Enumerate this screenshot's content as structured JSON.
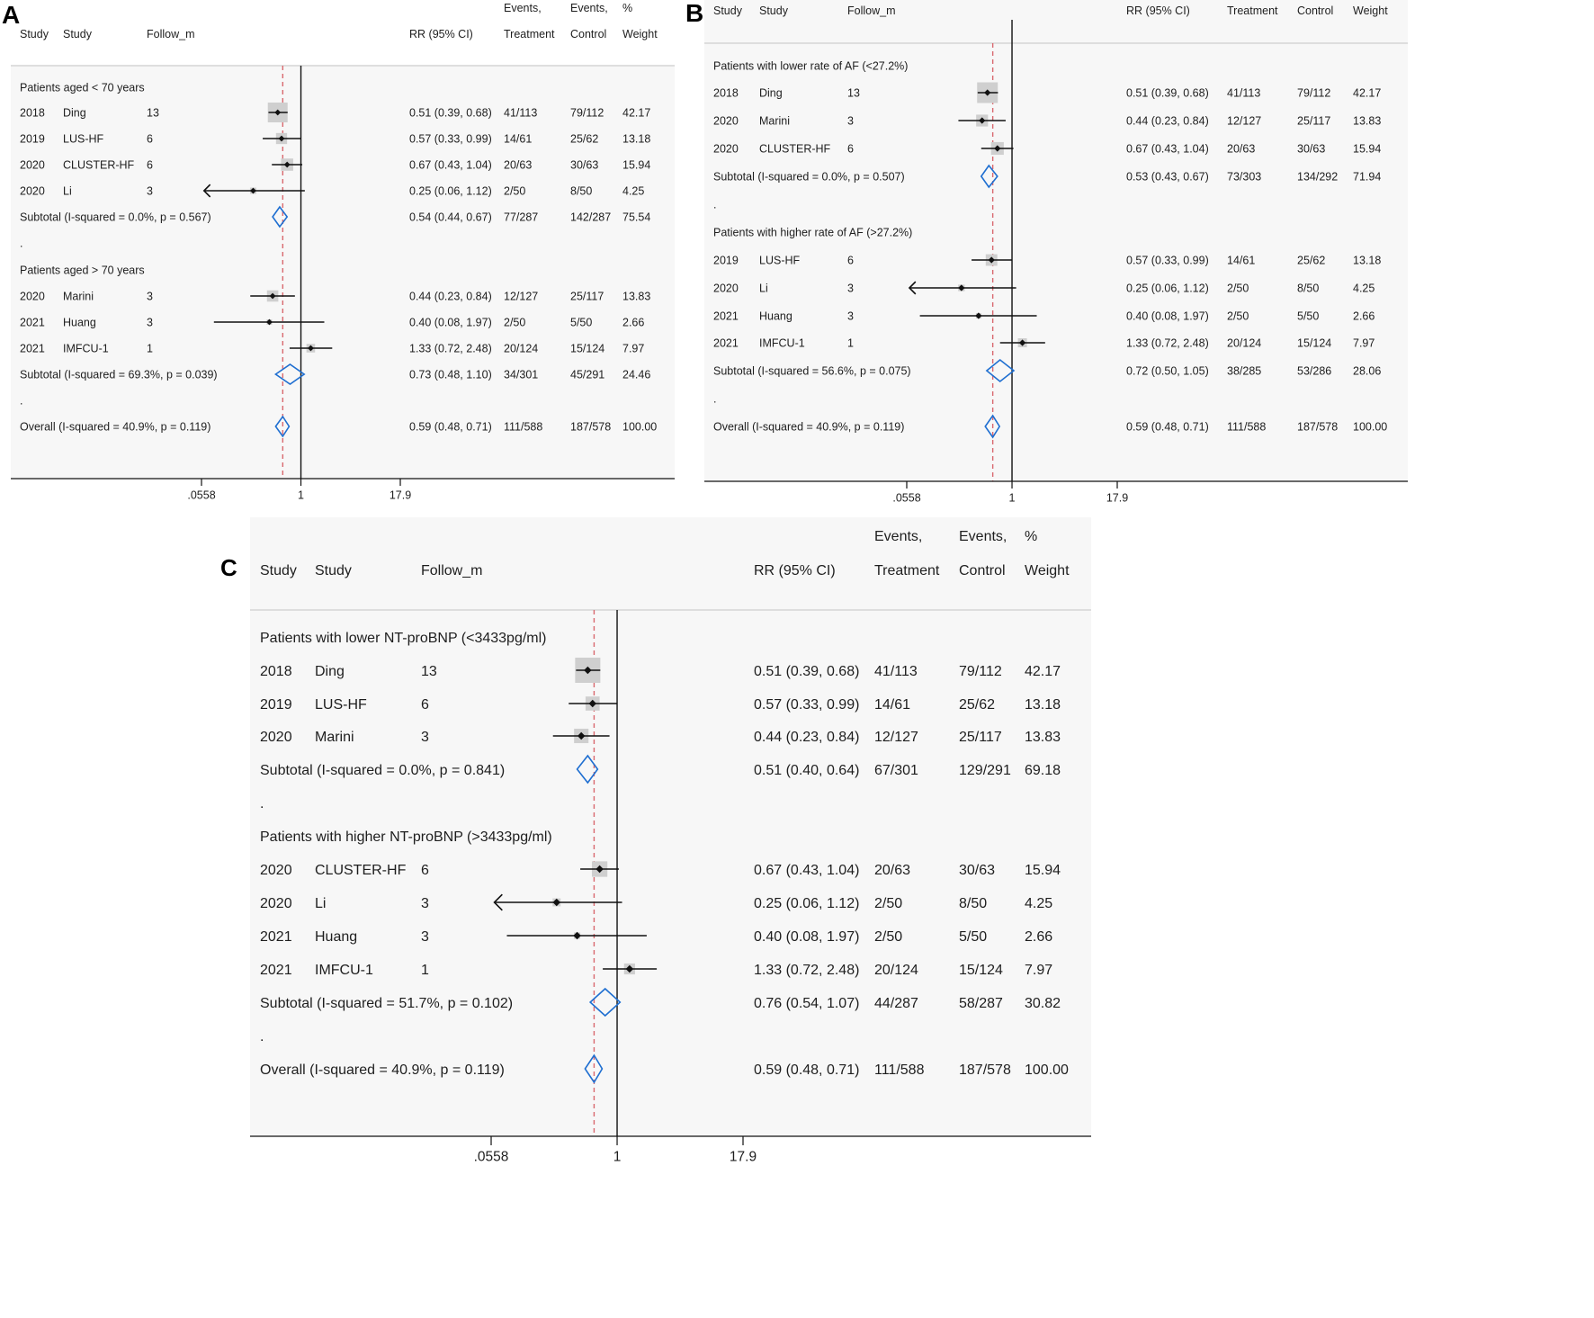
{
  "chart_data": [
    {
      "type": "forest",
      "panel_label": "A",
      "headers": {
        "year": "Study",
        "study": "Study",
        "follow": "Follow_m",
        "rr": "RR (95% CI)",
        "treat_1": "Events,",
        "treat_2": "Treatment",
        "ctrl_1": "Events,",
        "ctrl_2": "Control",
        "wt_1": "%",
        "wt_2": "Weight"
      },
      "x_axis": {
        "scale": "log",
        "ticks": [
          ".0558",
          "1",
          "17.9"
        ],
        "tick_values": [
          0.0558,
          1,
          17.9
        ],
        "xlim": [
          0.0558,
          17.9
        ],
        "reference": 1
      },
      "overall_effect": 0.59,
      "rows": [
        {
          "kind": "group",
          "text": "Patients aged < 70 years"
        },
        {
          "kind": "study",
          "year": "2018",
          "study": "Ding",
          "follow": "13",
          "est": 0.51,
          "lo": 0.39,
          "hi": 0.68,
          "ci_text": "0.51 (0.39, 0.68)",
          "treat": "41/113",
          "ctrl": "79/112",
          "weight": "42.17"
        },
        {
          "kind": "study",
          "year": "2019",
          "study": "LUS-HF",
          "follow": "6",
          "est": 0.57,
          "lo": 0.33,
          "hi": 0.99,
          "ci_text": "0.57 (0.33, 0.99)",
          "treat": "14/61",
          "ctrl": "25/62",
          "weight": "13.18"
        },
        {
          "kind": "study",
          "year": "2020",
          "study": "CLUSTER-HF",
          "follow": "6",
          "est": 0.67,
          "lo": 0.43,
          "hi": 1.04,
          "ci_text": "0.67 (0.43, 1.04)",
          "treat": "20/63",
          "ctrl": "30/63",
          "weight": "15.94"
        },
        {
          "kind": "study",
          "year": "2020",
          "study": "Li",
          "follow": "3",
          "est": 0.25,
          "lo": 0.06,
          "hi": 1.12,
          "ci_text": "0.25 (0.06, 1.12)",
          "treat": "2/50",
          "ctrl": "8/50",
          "weight": "4.25",
          "arrow_left": true
        },
        {
          "kind": "subtotal",
          "text": "Subtotal  (I-squared = 0.0%, p = 0.567)",
          "est": 0.54,
          "lo": 0.44,
          "hi": 0.67,
          "ci_text": "0.54 (0.44, 0.67)",
          "treat": "77/287",
          "ctrl": "142/287",
          "weight": "75.54"
        },
        {
          "kind": "dot",
          "text": "."
        },
        {
          "kind": "group",
          "text": "Patients aged > 70 years"
        },
        {
          "kind": "study",
          "year": "2020",
          "study": "Marini",
          "follow": "3",
          "est": 0.44,
          "lo": 0.23,
          "hi": 0.84,
          "ci_text": "0.44 (0.23, 0.84)",
          "treat": "12/127",
          "ctrl": "25/117",
          "weight": "13.83"
        },
        {
          "kind": "study",
          "year": "2021",
          "study": "Huang",
          "follow": "3",
          "est": 0.4,
          "lo": 0.08,
          "hi": 1.97,
          "ci_text": "0.40 (0.08, 1.97)",
          "treat": "2/50",
          "ctrl": "5/50",
          "weight": "2.66"
        },
        {
          "kind": "study",
          "year": "2021",
          "study": "IMFCU-1",
          "follow": "1",
          "est": 1.33,
          "lo": 0.72,
          "hi": 2.48,
          "ci_text": "1.33 (0.72, 2.48)",
          "treat": "20/124",
          "ctrl": "15/124",
          "weight": "7.97"
        },
        {
          "kind": "subtotal",
          "text": "Subtotal  (I-squared = 69.3%, p = 0.039)",
          "est": 0.73,
          "lo": 0.48,
          "hi": 1.1,
          "ci_text": "0.73 (0.48, 1.10)",
          "treat": "34/301",
          "ctrl": "45/291",
          "weight": "24.46"
        },
        {
          "kind": "dot",
          "text": "."
        },
        {
          "kind": "overall",
          "text": "Overall  (I-squared = 40.9%, p = 0.119)",
          "est": 0.59,
          "lo": 0.48,
          "hi": 0.71,
          "ci_text": "0.59 (0.48, 0.71)",
          "treat": "111/588",
          "ctrl": "187/578",
          "weight": "100.00"
        }
      ]
    },
    {
      "type": "forest",
      "panel_label": "B",
      "headers": {
        "year": "Study",
        "study": "Study",
        "follow": "Follow_m",
        "rr": "RR (95% CI)",
        "treat_1": "",
        "treat_2": "Treatment",
        "ctrl_1": "",
        "ctrl_2": "Control",
        "wt_1": "",
        "wt_2": "Weight"
      },
      "x_axis": {
        "scale": "log",
        "ticks": [
          ".0558",
          "1",
          "17.9"
        ],
        "tick_values": [
          0.0558,
          1,
          17.9
        ],
        "xlim": [
          0.0558,
          17.9
        ],
        "reference": 1
      },
      "overall_effect": 0.59,
      "rows": [
        {
          "kind": "group",
          "text": "Patients with lower rate of AF (<27.2%)"
        },
        {
          "kind": "study",
          "year": "2018",
          "study": "Ding",
          "follow": "13",
          "est": 0.51,
          "lo": 0.39,
          "hi": 0.68,
          "ci_text": "0.51 (0.39, 0.68)",
          "treat": "41/113",
          "ctrl": "79/112",
          "weight": "42.17"
        },
        {
          "kind": "study",
          "year": "2020",
          "study": "Marini",
          "follow": "3",
          "est": 0.44,
          "lo": 0.23,
          "hi": 0.84,
          "ci_text": "0.44 (0.23, 0.84)",
          "treat": "12/127",
          "ctrl": "25/117",
          "weight": "13.83"
        },
        {
          "kind": "study",
          "year": "2020",
          "study": "CLUSTER-HF",
          "follow": "6",
          "est": 0.67,
          "lo": 0.43,
          "hi": 1.04,
          "ci_text": "0.67 (0.43, 1.04)",
          "treat": "20/63",
          "ctrl": "30/63",
          "weight": "15.94"
        },
        {
          "kind": "subtotal",
          "text": "Subtotal  (I-squared = 0.0%, p = 0.507)",
          "est": 0.53,
          "lo": 0.43,
          "hi": 0.67,
          "ci_text": "0.53 (0.43, 0.67)",
          "treat": "73/303",
          "ctrl": "134/292",
          "weight": "71.94"
        },
        {
          "kind": "dot",
          "text": "."
        },
        {
          "kind": "group",
          "text": "Patients with higher rate of AF (>27.2%)"
        },
        {
          "kind": "study",
          "year": "2019",
          "study": "LUS-HF",
          "follow": "6",
          "est": 0.57,
          "lo": 0.33,
          "hi": 0.99,
          "ci_text": "0.57 (0.33, 0.99)",
          "treat": "14/61",
          "ctrl": "25/62",
          "weight": "13.18"
        },
        {
          "kind": "study",
          "year": "2020",
          "study": "Li",
          "follow": "3",
          "est": 0.25,
          "lo": 0.06,
          "hi": 1.12,
          "ci_text": "0.25 (0.06, 1.12)",
          "treat": "2/50",
          "ctrl": "8/50",
          "weight": "4.25",
          "arrow_left": true
        },
        {
          "kind": "study",
          "year": "2021",
          "study": "Huang",
          "follow": "3",
          "est": 0.4,
          "lo": 0.08,
          "hi": 1.97,
          "ci_text": "0.40 (0.08, 1.97)",
          "treat": "2/50",
          "ctrl": "5/50",
          "weight": "2.66"
        },
        {
          "kind": "study",
          "year": "2021",
          "study": "IMFCU-1",
          "follow": "1",
          "est": 1.33,
          "lo": 0.72,
          "hi": 2.48,
          "ci_text": "1.33 (0.72, 2.48)",
          "treat": "20/124",
          "ctrl": "15/124",
          "weight": "7.97"
        },
        {
          "kind": "subtotal",
          "text": "Subtotal  (I-squared = 56.6%, p = 0.075)",
          "est": 0.72,
          "lo": 0.5,
          "hi": 1.05,
          "ci_text": "0.72 (0.50, 1.05)",
          "treat": "38/285",
          "ctrl": "53/286",
          "weight": "28.06"
        },
        {
          "kind": "dot",
          "text": "."
        },
        {
          "kind": "overall",
          "text": "Overall  (I-squared = 40.9%, p = 0.119)",
          "est": 0.59,
          "lo": 0.48,
          "hi": 0.71,
          "ci_text": "0.59 (0.48, 0.71)",
          "treat": "111/588",
          "ctrl": "187/578",
          "weight": "100.00"
        }
      ]
    },
    {
      "type": "forest",
      "panel_label": "C",
      "headers": {
        "year": "Study",
        "study": "Study",
        "follow": "Follow_m",
        "rr": "RR (95% CI)",
        "treat_1": "Events,",
        "treat_2": "Treatment",
        "ctrl_1": "Events,",
        "ctrl_2": "Control",
        "wt_1": "%",
        "wt_2": "Weight"
      },
      "x_axis": {
        "scale": "log",
        "ticks": [
          ".0558",
          "1",
          "17.9"
        ],
        "tick_values": [
          0.0558,
          1,
          17.9
        ],
        "xlim": [
          0.0558,
          17.9
        ],
        "reference": 1
      },
      "overall_effect": 0.59,
      "rows": [
        {
          "kind": "group",
          "text": "Patients with lower NT-proBNP (<3433pg/ml)"
        },
        {
          "kind": "study",
          "year": "2018",
          "study": "Ding",
          "follow": "13",
          "est": 0.51,
          "lo": 0.39,
          "hi": 0.68,
          "ci_text": "0.51 (0.39, 0.68)",
          "treat": "41/113",
          "ctrl": "79/112",
          "weight": "42.17"
        },
        {
          "kind": "study",
          "year": "2019",
          "study": "LUS-HF",
          "follow": "6",
          "est": 0.57,
          "lo": 0.33,
          "hi": 0.99,
          "ci_text": "0.57 (0.33, 0.99)",
          "treat": "14/61",
          "ctrl": "25/62",
          "weight": "13.18"
        },
        {
          "kind": "study",
          "year": "2020",
          "study": "Marini",
          "follow": "3",
          "est": 0.44,
          "lo": 0.23,
          "hi": 0.84,
          "ci_text": "0.44 (0.23, 0.84)",
          "treat": "12/127",
          "ctrl": "25/117",
          "weight": "13.83"
        },
        {
          "kind": "subtotal",
          "text": "Subtotal  (I-squared = 0.0%, p = 0.841)",
          "est": 0.51,
          "lo": 0.4,
          "hi": 0.64,
          "ci_text": "0.51 (0.40, 0.64)",
          "treat": "67/301",
          "ctrl": "129/291",
          "weight": "69.18"
        },
        {
          "kind": "dot",
          "text": "."
        },
        {
          "kind": "group",
          "text": "Patients with higher NT-proBNP (>3433pg/ml)"
        },
        {
          "kind": "study",
          "year": "2020",
          "study": "CLUSTER-HF",
          "follow": "6",
          "est": 0.67,
          "lo": 0.43,
          "hi": 1.04,
          "ci_text": "0.67 (0.43, 1.04)",
          "treat": "20/63",
          "ctrl": "30/63",
          "weight": "15.94"
        },
        {
          "kind": "study",
          "year": "2020",
          "study": "Li",
          "follow": "3",
          "est": 0.25,
          "lo": 0.06,
          "hi": 1.12,
          "ci_text": "0.25 (0.06, 1.12)",
          "treat": "2/50",
          "ctrl": "8/50",
          "weight": "4.25",
          "arrow_left": true
        },
        {
          "kind": "study",
          "year": "2021",
          "study": "Huang",
          "follow": "3",
          "est": 0.4,
          "lo": 0.08,
          "hi": 1.97,
          "ci_text": "0.40 (0.08, 1.97)",
          "treat": "2/50",
          "ctrl": "5/50",
          "weight": "2.66"
        },
        {
          "kind": "study",
          "year": "2021",
          "study": "IMFCU-1",
          "follow": "1",
          "est": 1.33,
          "lo": 0.72,
          "hi": 2.48,
          "ci_text": "1.33 (0.72, 2.48)",
          "treat": "20/124",
          "ctrl": "15/124",
          "weight": "7.97"
        },
        {
          "kind": "subtotal",
          "text": "Subtotal  (I-squared = 51.7%, p = 0.102)",
          "est": 0.76,
          "lo": 0.54,
          "hi": 1.07,
          "ci_text": "0.76 (0.54, 1.07)",
          "treat": "44/287",
          "ctrl": "58/287",
          "weight": "30.82"
        },
        {
          "kind": "dot",
          "text": "."
        },
        {
          "kind": "overall",
          "text": "Overall  (I-squared = 40.9%, p = 0.119)",
          "est": 0.59,
          "lo": 0.48,
          "hi": 0.71,
          "ci_text": "0.59 (0.48, 0.71)",
          "treat": "111/588",
          "ctrl": "187/578",
          "weight": "100.00"
        }
      ]
    }
  ],
  "colors": {
    "overall_line": "#d9686e",
    "diamond": "#1f6fd1",
    "marker": "#111111",
    "weight_box": "#cfcfcf",
    "panel_bg": "#f7f7f7",
    "axis": "#111111"
  }
}
